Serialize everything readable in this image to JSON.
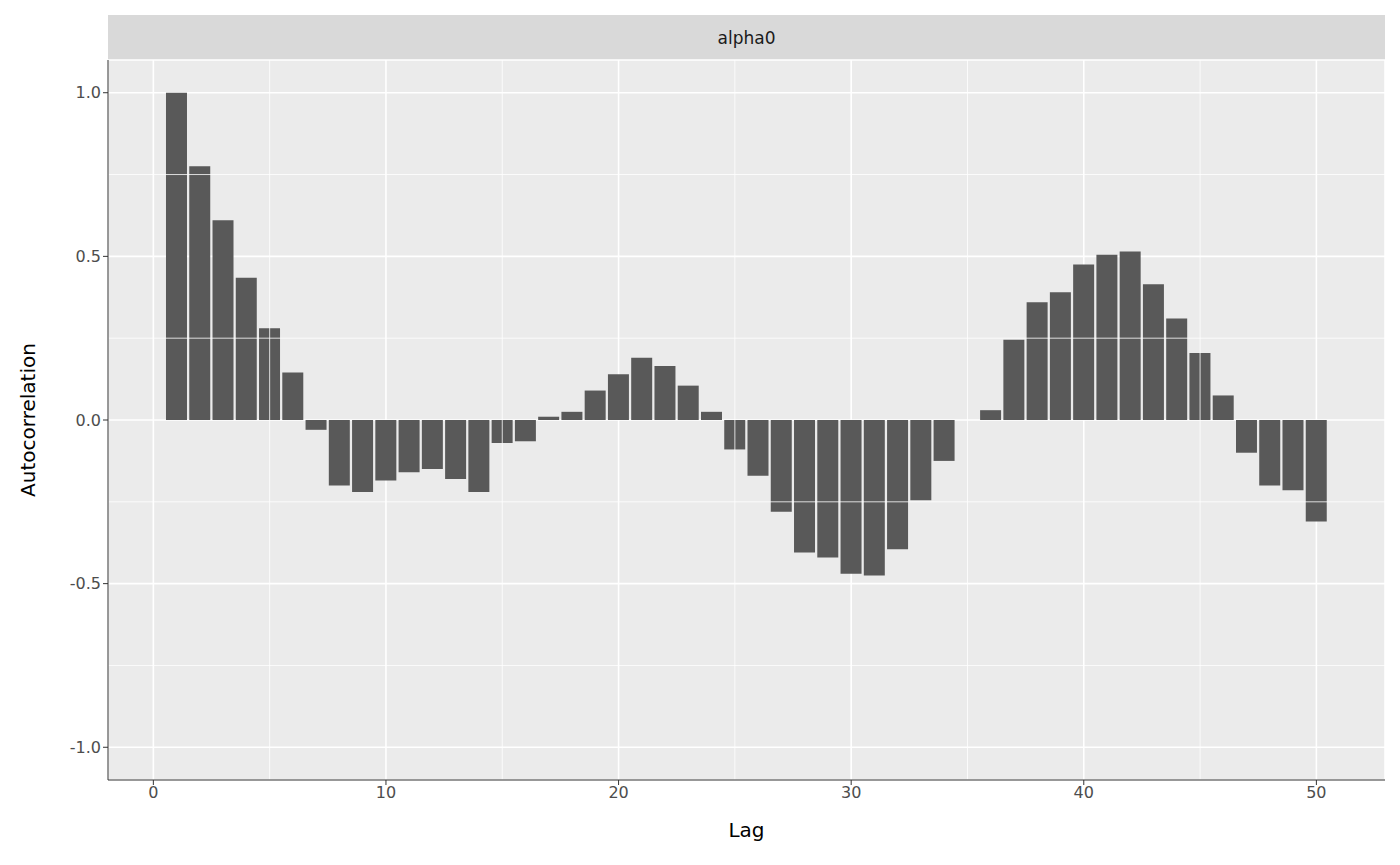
{
  "chart_data": {
    "type": "bar",
    "title": "alpha0",
    "x_label": "Lag",
    "y_label": "Autocorrelation",
    "x": [
      1,
      2,
      3,
      4,
      5,
      6,
      7,
      8,
      9,
      10,
      11,
      12,
      13,
      14,
      15,
      16,
      17,
      18,
      19,
      20,
      21,
      22,
      23,
      24,
      25,
      26,
      27,
      28,
      29,
      30,
      31,
      32,
      33,
      34,
      35,
      36,
      37,
      38,
      39,
      40,
      41,
      42,
      43,
      44,
      45,
      46,
      47,
      48,
      49,
      50
    ],
    "values": [
      1.0,
      0.775,
      0.61,
      0.435,
      0.28,
      0.145,
      -0.03,
      -0.2,
      -0.22,
      -0.185,
      -0.16,
      -0.15,
      -0.18,
      -0.22,
      -0.07,
      -0.065,
      0.01,
      0.025,
      0.09,
      0.14,
      0.19,
      0.165,
      0.105,
      0.025,
      -0.09,
      -0.17,
      -0.28,
      -0.405,
      -0.42,
      -0.47,
      -0.475,
      -0.395,
      -0.245,
      -0.125,
      0.0,
      0.03,
      0.245,
      0.36,
      0.39,
      0.475,
      0.505,
      0.515,
      0.415,
      0.31,
      0.205,
      0.075,
      -0.1,
      -0.2,
      -0.215,
      -0.31
    ],
    "color": "#595959",
    "xlim": [
      -1.95,
      52.95
    ],
    "xticks": [
      0,
      10,
      20,
      30,
      40,
      50
    ],
    "ylim": [
      -1.1,
      1.1
    ],
    "yticks": [
      {
        "value": -1.0,
        "label": "-1.0"
      },
      {
        "value": -0.5,
        "label": "-0.5"
      },
      {
        "value": 0.0,
        "label": "0.0"
      },
      {
        "value": 0.5,
        "label": "0.5"
      },
      {
        "value": 1.0,
        "label": "1.0"
      }
    ],
    "grid": true
  }
}
